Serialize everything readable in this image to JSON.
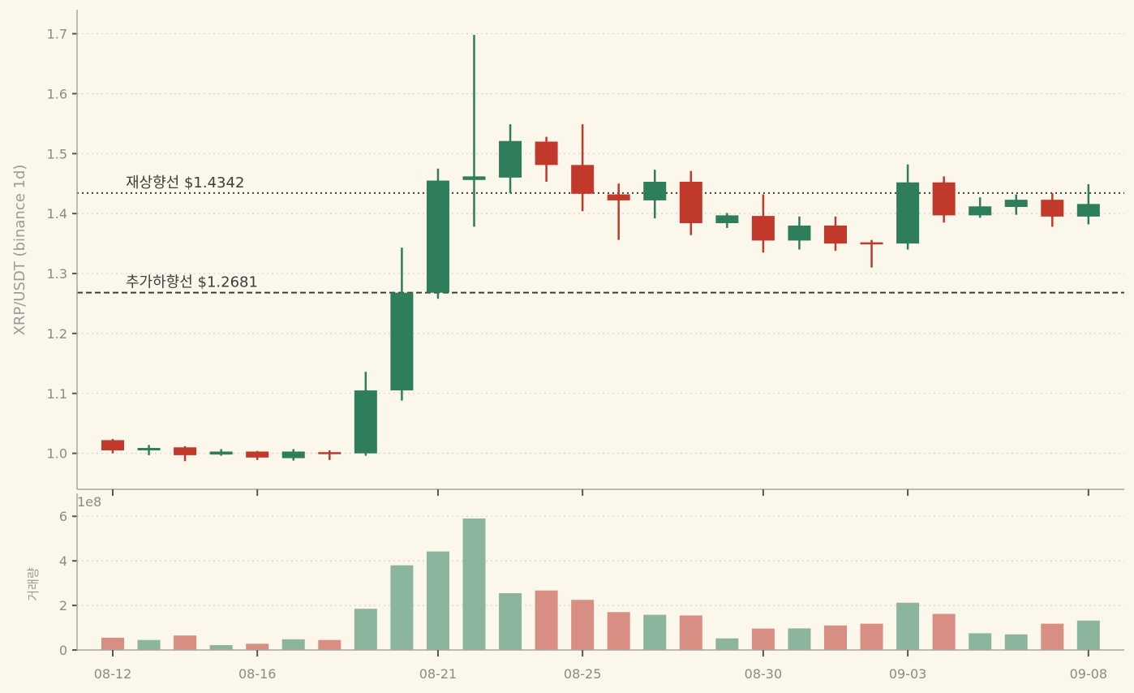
{
  "chart_data": {
    "type": "candlestick",
    "ylabel": "XRP/USDT (binance 1d)",
    "volume_ylabel": "거래량",
    "volume_scale_label": "1e8",
    "colors": {
      "up": "#2e7d5b",
      "down": "#c0392b",
      "up_volume": "#8bb59c",
      "down_volume": "#d88e82",
      "background": "#fbf7ea"
    },
    "price_ylim": [
      0.94,
      1.74
    ],
    "price_yticks": [
      "1.0",
      "1.1",
      "1.2",
      "1.3",
      "1.4",
      "1.5",
      "1.6",
      "1.7"
    ],
    "volume_ylim": [
      0,
      6.3
    ],
    "volume_yticks": [
      "0",
      "2",
      "4",
      "6"
    ],
    "grid": true,
    "x_tick_labels": [
      {
        "date": "08-12",
        "index": 0
      },
      {
        "date": "08-16",
        "index": 4
      },
      {
        "date": "08-21",
        "index": 9
      },
      {
        "date": "08-25",
        "index": 13
      },
      {
        "date": "08-30",
        "index": 18
      },
      {
        "date": "09-03",
        "index": 22
      },
      {
        "date": "09-08",
        "index": 27
      }
    ],
    "reference_lines": [
      {
        "label": "재상향선 $1.4342",
        "value": 1.4342,
        "style": "dotted"
      },
      {
        "label": "추가하향선 $1.2681",
        "value": 1.2681,
        "style": "dashed"
      }
    ],
    "candles": [
      {
        "date": "08-12",
        "open": 1.022,
        "high": 1.024,
        "low": 1.0,
        "close": 1.005,
        "volume": 0.55
      },
      {
        "date": "08-13",
        "open": 1.005,
        "high": 1.014,
        "low": 0.997,
        "close": 1.009,
        "volume": 0.45
      },
      {
        "date": "08-14",
        "open": 1.01,
        "high": 1.012,
        "low": 0.987,
        "close": 0.997,
        "volume": 0.65
      },
      {
        "date": "08-15",
        "open": 0.998,
        "high": 1.007,
        "low": 0.996,
        "close": 1.003,
        "volume": 0.22
      },
      {
        "date": "08-16",
        "open": 1.003,
        "high": 1.004,
        "low": 0.989,
        "close": 0.993,
        "volume": 0.28
      },
      {
        "date": "08-17",
        "open": 0.992,
        "high": 1.007,
        "low": 0.988,
        "close": 1.003,
        "volume": 0.48
      },
      {
        "date": "08-18",
        "open": 1.002,
        "high": 1.005,
        "low": 0.989,
        "close": 1.001,
        "volume": 0.45
      },
      {
        "date": "08-19",
        "open": 1.0,
        "high": 1.136,
        "low": 0.996,
        "close": 1.105,
        "volume": 1.85
      },
      {
        "date": "08-20",
        "open": 1.105,
        "high": 1.343,
        "low": 1.088,
        "close": 1.268,
        "volume": 3.8
      },
      {
        "date": "08-21",
        "open": 1.268,
        "high": 1.475,
        "low": 1.258,
        "close": 1.455,
        "volume": 4.42
      },
      {
        "date": "08-22",
        "open": 1.456,
        "high": 1.698,
        "low": 1.378,
        "close": 1.462,
        "volume": 5.9
      },
      {
        "date": "08-23",
        "open": 1.46,
        "high": 1.549,
        "low": 1.434,
        "close": 1.521,
        "volume": 2.55
      },
      {
        "date": "08-24",
        "open": 1.52,
        "high": 1.528,
        "low": 1.453,
        "close": 1.481,
        "volume": 2.67
      },
      {
        "date": "08-25",
        "open": 1.481,
        "high": 1.549,
        "low": 1.404,
        "close": 1.433,
        "volume": 2.25
      },
      {
        "date": "08-26",
        "open": 1.432,
        "high": 1.45,
        "low": 1.356,
        "close": 1.422,
        "volume": 1.7
      },
      {
        "date": "08-27",
        "open": 1.422,
        "high": 1.473,
        "low": 1.392,
        "close": 1.453,
        "volume": 1.58
      },
      {
        "date": "08-28",
        "open": 1.453,
        "high": 1.471,
        "low": 1.364,
        "close": 1.384,
        "volume": 1.55
      },
      {
        "date": "08-29",
        "open": 1.384,
        "high": 1.401,
        "low": 1.376,
        "close": 1.397,
        "volume": 0.52
      },
      {
        "date": "08-30",
        "open": 1.396,
        "high": 1.432,
        "low": 1.335,
        "close": 1.355,
        "volume": 0.96
      },
      {
        "date": "08-31",
        "open": 1.355,
        "high": 1.395,
        "low": 1.34,
        "close": 1.38,
        "volume": 0.97
      },
      {
        "date": "09-01",
        "open": 1.38,
        "high": 1.395,
        "low": 1.338,
        "close": 1.35,
        "volume": 1.1
      },
      {
        "date": "09-02",
        "open": 1.352,
        "high": 1.356,
        "low": 1.31,
        "close": 1.35,
        "volume": 1.18
      },
      {
        "date": "09-03",
        "open": 1.35,
        "high": 1.482,
        "low": 1.34,
        "close": 1.452,
        "volume": 2.12
      },
      {
        "date": "09-04",
        "open": 1.452,
        "high": 1.462,
        "low": 1.385,
        "close": 1.397,
        "volume": 1.62
      },
      {
        "date": "09-05",
        "open": 1.397,
        "high": 1.427,
        "low": 1.393,
        "close": 1.412,
        "volume": 0.75
      },
      {
        "date": "09-06",
        "open": 1.411,
        "high": 1.432,
        "low": 1.398,
        "close": 1.423,
        "volume": 0.7
      },
      {
        "date": "09-07",
        "open": 1.423,
        "high": 1.434,
        "low": 1.378,
        "close": 1.395,
        "volume": 1.18
      },
      {
        "date": "09-08",
        "open": 1.395,
        "high": 1.449,
        "low": 1.382,
        "close": 1.416,
        "volume": 1.32
      }
    ]
  }
}
